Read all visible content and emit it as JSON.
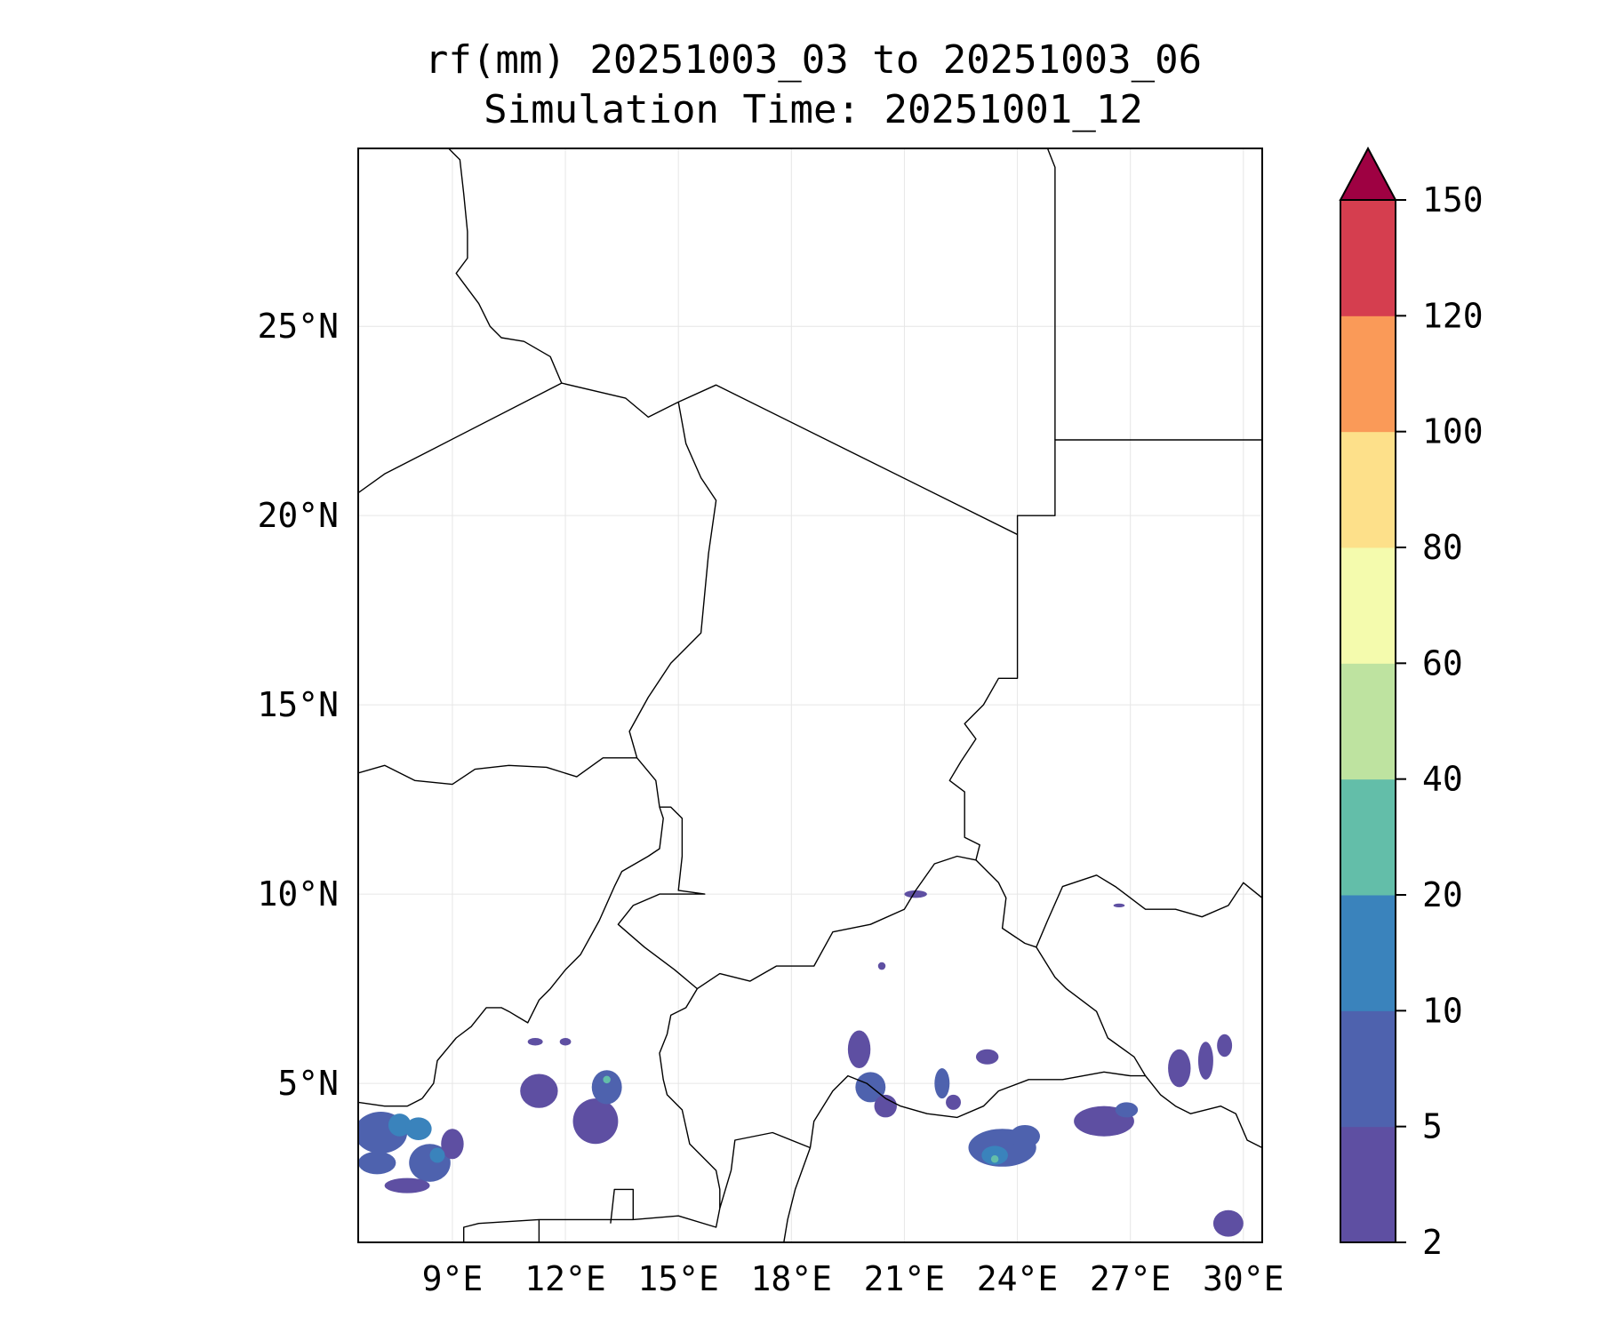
{
  "figure": {
    "title_line1": "rf(mm) 20251003_03 to 20251003_06",
    "title_line2": "Simulation Time: 20251001_12"
  },
  "map": {
    "lon_range": [
      6.5,
      30.5
    ],
    "lat_range": [
      0.8,
      29.7
    ],
    "lon_ticks": [
      9,
      12,
      15,
      18,
      21,
      24,
      27,
      30
    ],
    "lon_tick_labels": [
      "9°E",
      "12°E",
      "15°E",
      "18°E",
      "21°E",
      "24°E",
      "27°E",
      "30°E"
    ],
    "lat_ticks": [
      5,
      10,
      15,
      20,
      25
    ],
    "lat_tick_labels": [
      "5°N",
      "10°N",
      "15°N",
      "20°N",
      "25°N"
    ],
    "gridlines": true,
    "background_color": "#ffffff",
    "border_color": "#000000",
    "borders": [
      [
        [
          6.5,
          20.6
        ],
        [
          7.2,
          21.1
        ],
        [
          11.9,
          23.5
        ],
        [
          13.6,
          23.1
        ],
        [
          14.2,
          22.6
        ],
        [
          15.0,
          23.0
        ],
        [
          16.0,
          23.45
        ],
        [
          24.0,
          19.5
        ]
      ],
      [
        [
          8.9,
          29.7
        ],
        [
          9.2,
          29.4
        ],
        [
          9.3,
          28.5
        ],
        [
          9.4,
          27.5
        ],
        [
          9.4,
          26.8
        ],
        [
          9.1,
          26.4
        ],
        [
          9.7,
          25.6
        ],
        [
          10.0,
          25.0
        ],
        [
          10.3,
          24.7
        ],
        [
          10.9,
          24.6
        ],
        [
          11.6,
          24.2
        ],
        [
          11.9,
          23.5
        ]
      ],
      [
        [
          15.0,
          23.0
        ],
        [
          15.2,
          21.9
        ],
        [
          15.6,
          21.0
        ],
        [
          16.0,
          20.4
        ],
        [
          15.8,
          19.0
        ],
        [
          15.6,
          16.9
        ],
        [
          14.8,
          16.1
        ],
        [
          14.2,
          15.2
        ],
        [
          13.7,
          14.3
        ],
        [
          13.9,
          13.6
        ],
        [
          14.4,
          13.0
        ],
        [
          14.5,
          12.3
        ],
        [
          14.6,
          12.0
        ],
        [
          14.5,
          11.2
        ],
        [
          14.2,
          11.0
        ],
        [
          13.5,
          10.6
        ],
        [
          13.3,
          10.2
        ],
        [
          12.9,
          9.3
        ],
        [
          12.4,
          8.4
        ],
        [
          12.0,
          8.0
        ],
        [
          11.6,
          7.5
        ],
        [
          11.3,
          7.2
        ],
        [
          11.0,
          6.6
        ],
        [
          10.5,
          6.9
        ],
        [
          10.3,
          7.0
        ],
        [
          9.9,
          7.0
        ],
        [
          9.5,
          6.5
        ],
        [
          9.1,
          6.2
        ],
        [
          8.6,
          5.6
        ],
        [
          8.5,
          5.0
        ],
        [
          8.2,
          4.6
        ]
      ],
      [
        [
          6.5,
          13.2
        ],
        [
          7.2,
          13.4
        ],
        [
          8.0,
          13.0
        ],
        [
          9.0,
          12.9
        ],
        [
          9.6,
          13.3
        ],
        [
          10.5,
          13.4
        ],
        [
          11.5,
          13.35
        ],
        [
          12.3,
          13.1
        ],
        [
          13.0,
          13.6
        ],
        [
          13.7,
          13.6
        ],
        [
          13.9,
          13.6
        ]
      ],
      [
        [
          14.5,
          12.3
        ],
        [
          14.8,
          12.3
        ],
        [
          15.1,
          12.0
        ],
        [
          15.1,
          11.0
        ],
        [
          15.0,
          10.1
        ],
        [
          15.7,
          10.0
        ],
        [
          14.9,
          10.0
        ],
        [
          14.5,
          10.0
        ],
        [
          13.8,
          9.7
        ],
        [
          13.4,
          9.2
        ],
        [
          14.1,
          8.6
        ],
        [
          14.9,
          8.0
        ],
        [
          15.5,
          7.5
        ],
        [
          15.2,
          7.0
        ],
        [
          14.8,
          6.8
        ],
        [
          14.7,
          6.3
        ],
        [
          14.5,
          5.8
        ],
        [
          14.6,
          5.1
        ],
        [
          14.7,
          4.7
        ],
        [
          15.1,
          4.3
        ],
        [
          15.3,
          3.4
        ],
        [
          16.0,
          2.7
        ],
        [
          16.1,
          2.2
        ],
        [
          16.1,
          1.7
        ],
        [
          16.0,
          1.2
        ],
        [
          15.0,
          1.5
        ],
        [
          13.8,
          1.4
        ],
        [
          11.3,
          1.4
        ],
        [
          9.7,
          1.3
        ],
        [
          9.3,
          1.2
        ],
        [
          9.3,
          0.8
        ]
      ],
      [
        [
          15.5,
          7.5
        ],
        [
          16.1,
          7.9
        ],
        [
          16.9,
          7.7
        ],
        [
          17.6,
          8.1
        ],
        [
          18.6,
          8.1
        ],
        [
          19.1,
          9.0
        ],
        [
          20.1,
          9.2
        ],
        [
          21.0,
          9.6
        ],
        [
          21.3,
          10.1
        ],
        [
          21.8,
          10.8
        ],
        [
          22.4,
          11.0
        ],
        [
          22.9,
          10.9
        ],
        [
          23.5,
          10.3
        ],
        [
          23.7,
          9.9
        ],
        [
          23.6,
          9.1
        ],
        [
          24.2,
          8.7
        ],
        [
          24.5,
          8.6
        ],
        [
          25.0,
          7.8
        ],
        [
          25.3,
          7.5
        ],
        [
          26.1,
          6.9
        ],
        [
          26.4,
          6.2
        ],
        [
          27.1,
          5.7
        ],
        [
          27.4,
          5.2
        ]
      ],
      [
        [
          24.0,
          19.5
        ],
        [
          24.0,
          15.7
        ],
        [
          23.5,
          15.7
        ],
        [
          23.1,
          15.0
        ],
        [
          22.6,
          14.5
        ],
        [
          22.9,
          14.1
        ],
        [
          22.5,
          13.5
        ],
        [
          22.2,
          13.0
        ],
        [
          22.6,
          12.7
        ],
        [
          22.6,
          11.5
        ],
        [
          23.0,
          11.3
        ],
        [
          22.9,
          10.9
        ]
      ],
      [
        [
          24.0,
          19.5
        ],
        [
          24.0,
          20.0
        ],
        [
          25.0,
          20.0
        ],
        [
          25.0,
          22.0
        ],
        [
          30.5,
          22.0
        ]
      ],
      [
        [
          25.0,
          22.0
        ],
        [
          25.0,
          29.2
        ],
        [
          24.8,
          29.7
        ]
      ],
      [
        [
          24.5,
          8.6
        ],
        [
          24.8,
          9.3
        ],
        [
          25.2,
          10.2
        ],
        [
          26.1,
          10.5
        ],
        [
          26.6,
          10.2
        ],
        [
          27.4,
          9.6
        ],
        [
          28.2,
          9.6
        ],
        [
          28.9,
          9.4
        ],
        [
          29.6,
          9.7
        ],
        [
          30.0,
          10.3
        ],
        [
          30.5,
          9.9
        ]
      ],
      [
        [
          18.5,
          3.3
        ],
        [
          18.6,
          4.0
        ],
        [
          19.1,
          4.8
        ],
        [
          19.5,
          5.2
        ],
        [
          20.0,
          5.0
        ],
        [
          20.5,
          4.6
        ],
        [
          20.9,
          4.4
        ],
        [
          21.6,
          4.2
        ],
        [
          22.4,
          4.1
        ],
        [
          23.1,
          4.4
        ],
        [
          23.5,
          4.8
        ],
        [
          24.3,
          5.1
        ],
        [
          25.2,
          5.1
        ],
        [
          26.3,
          5.3
        ],
        [
          27.0,
          5.2
        ],
        [
          27.4,
          5.2
        ],
        [
          27.8,
          4.7
        ],
        [
          28.2,
          4.4
        ],
        [
          28.6,
          4.2
        ],
        [
          29.4,
          4.4
        ],
        [
          29.8,
          4.2
        ],
        [
          30.1,
          3.5
        ],
        [
          30.5,
          3.3
        ]
      ],
      [
        [
          18.5,
          3.3
        ],
        [
          18.1,
          2.2
        ],
        [
          17.9,
          1.4
        ],
        [
          17.8,
          0.8
        ]
      ],
      [
        [
          16.1,
          1.7
        ],
        [
          16.4,
          2.7
        ],
        [
          16.5,
          3.5
        ],
        [
          17.5,
          3.7
        ],
        [
          18.5,
          3.3
        ]
      ],
      [
        [
          13.8,
          1.4
        ],
        [
          13.8,
          2.2
        ],
        [
          13.3,
          2.2
        ],
        [
          13.2,
          1.3
        ]
      ],
      [
        [
          11.3,
          1.4
        ],
        [
          11.3,
          0.8
        ]
      ],
      [
        [
          6.5,
          4.5
        ],
        [
          7.2,
          4.4
        ],
        [
          7.8,
          4.4
        ],
        [
          8.2,
          4.6
        ]
      ]
    ]
  },
  "colorbar": {
    "levels": [
      2,
      5,
      10,
      20,
      40,
      60,
      80,
      100,
      120,
      150
    ],
    "tick_labels": [
      "2",
      "5",
      "10",
      "20",
      "40",
      "60",
      "80",
      "100",
      "120",
      "150"
    ],
    "colors": [
      "#5e4fa2",
      "#4e62ae",
      "#3a83bc",
      "#63bea9",
      "#bee3a0",
      "#f4fbad",
      "#fde08a",
      "#fa9a58",
      "#d53e4f"
    ],
    "extend_max_color": "#9e0142"
  },
  "rainfall_cells": [
    {
      "lon": 7.1,
      "lat": 3.7,
      "rx": 0.7,
      "ry": 0.55,
      "class": 1
    },
    {
      "lon": 7.6,
      "lat": 3.9,
      "rx": 0.3,
      "ry": 0.3,
      "class": 2
    },
    {
      "lon": 8.1,
      "lat": 3.8,
      "rx": 0.35,
      "ry": 0.3,
      "class": 2
    },
    {
      "lon": 7.0,
      "lat": 2.9,
      "rx": 0.5,
      "ry": 0.3,
      "class": 1
    },
    {
      "lon": 8.4,
      "lat": 2.9,
      "rx": 0.55,
      "ry": 0.5,
      "class": 1
    },
    {
      "lon": 7.8,
      "lat": 2.3,
      "rx": 0.6,
      "ry": 0.2,
      "class": 0
    },
    {
      "lon": 9.0,
      "lat": 3.4,
      "rx": 0.3,
      "ry": 0.4,
      "class": 0
    },
    {
      "lon": 8.6,
      "lat": 3.1,
      "rx": 0.2,
      "ry": 0.2,
      "class": 2
    },
    {
      "lon": 11.3,
      "lat": 4.8,
      "rx": 0.5,
      "ry": 0.45,
      "class": 0
    },
    {
      "lon": 12.8,
      "lat": 4.0,
      "rx": 0.6,
      "ry": 0.6,
      "class": 0
    },
    {
      "lon": 13.1,
      "lat": 4.9,
      "rx": 0.4,
      "ry": 0.45,
      "class": 1
    },
    {
      "lon": 13.1,
      "lat": 5.1,
      "rx": 0.1,
      "ry": 0.1,
      "class": 3
    },
    {
      "lon": 11.2,
      "lat": 6.1,
      "rx": 0.2,
      "ry": 0.1,
      "class": 0
    },
    {
      "lon": 12.0,
      "lat": 6.1,
      "rx": 0.15,
      "ry": 0.1,
      "class": 0
    },
    {
      "lon": 19.8,
      "lat": 5.9,
      "rx": 0.3,
      "ry": 0.5,
      "class": 0
    },
    {
      "lon": 20.1,
      "lat": 4.9,
      "rx": 0.4,
      "ry": 0.4,
      "class": 1
    },
    {
      "lon": 20.5,
      "lat": 4.4,
      "rx": 0.3,
      "ry": 0.3,
      "class": 0
    },
    {
      "lon": 22.0,
      "lat": 5.0,
      "rx": 0.2,
      "ry": 0.4,
      "class": 1
    },
    {
      "lon": 22.3,
      "lat": 4.5,
      "rx": 0.2,
      "ry": 0.2,
      "class": 0
    },
    {
      "lon": 23.2,
      "lat": 5.7,
      "rx": 0.3,
      "ry": 0.2,
      "class": 0
    },
    {
      "lon": 23.6,
      "lat": 3.3,
      "rx": 0.9,
      "ry": 0.5,
      "class": 1
    },
    {
      "lon": 23.4,
      "lat": 3.1,
      "rx": 0.35,
      "ry": 0.25,
      "class": 2
    },
    {
      "lon": 23.4,
      "lat": 3.0,
      "rx": 0.1,
      "ry": 0.1,
      "class": 3
    },
    {
      "lon": 24.2,
      "lat": 3.6,
      "rx": 0.4,
      "ry": 0.3,
      "class": 1
    },
    {
      "lon": 26.3,
      "lat": 4.0,
      "rx": 0.8,
      "ry": 0.4,
      "class": 0
    },
    {
      "lon": 26.9,
      "lat": 4.3,
      "rx": 0.3,
      "ry": 0.2,
      "class": 1
    },
    {
      "lon": 28.3,
      "lat": 5.4,
      "rx": 0.3,
      "ry": 0.5,
      "class": 0
    },
    {
      "lon": 29.0,
      "lat": 5.6,
      "rx": 0.2,
      "ry": 0.5,
      "class": 0
    },
    {
      "lon": 29.5,
      "lat": 6.0,
      "rx": 0.2,
      "ry": 0.3,
      "class": 0
    },
    {
      "lon": 29.6,
      "lat": 1.3,
      "rx": 0.4,
      "ry": 0.35,
      "class": 0
    },
    {
      "lon": 21.3,
      "lat": 10.0,
      "rx": 0.3,
      "ry": 0.1,
      "class": 0
    },
    {
      "lon": 26.7,
      "lat": 9.7,
      "rx": 0.15,
      "ry": 0.05,
      "class": 0
    },
    {
      "lon": 20.4,
      "lat": 8.1,
      "rx": 0.1,
      "ry": 0.1,
      "class": 0
    }
  ]
}
